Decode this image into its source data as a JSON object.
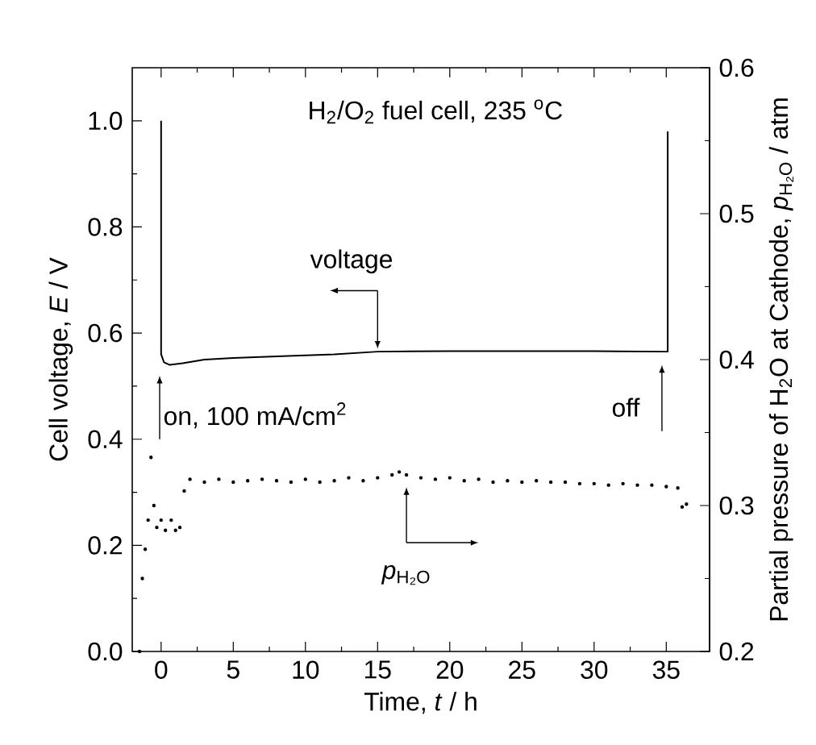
{
  "chart_data": {
    "type": "line",
    "title": "H$_{2}$/O$_{2}$ fuel cell, 235 $^{o}$C",
    "xlabel": "Time, *t* / h",
    "ylabel": "Cell voltage, *E* / V",
    "y2label": "Partial pressure of H$_{2}$O at Cathode, *p*$_{H₂O}$ / atm",
    "xlim": [
      -2,
      38
    ],
    "xticks": [
      0,
      5,
      10,
      15,
      20,
      25,
      30,
      35
    ],
    "ylim": [
      0,
      1.1
    ],
    "yticks": [
      {
        "value": 0,
        "label": "0.0"
      },
      0.2,
      0.4,
      0.6,
      0.8,
      {
        "value": 1,
        "label": "1.0"
      }
    ],
    "y2lim": [
      0.2,
      0.6
    ],
    "y2ticks": [
      0.2,
      0.3,
      0.4,
      0.5,
      0.6
    ],
    "series": [
      {
        "color": "#000000",
        "marker": "none",
        "x": [
          0,
          0,
          0.2,
          0.6,
          1.5,
          3,
          5,
          8,
          12,
          15,
          20,
          25,
          30,
          35,
          35.1,
          35.1
        ],
        "values": [
          1.0,
          0.56,
          0.545,
          0.54,
          0.543,
          0.55,
          0.553,
          0.556,
          0.56,
          0.565,
          0.566,
          0.566,
          0.566,
          0.565,
          0.565,
          0.98
        ]
      },
      {
        "type": "scatter",
        "axis": "y2",
        "color": "#000000",
        "marker": "circle",
        "x": [
          -1.5,
          -1.3,
          -1.1,
          -0.9,
          -0.7,
          -0.5,
          -0.3,
          0,
          0.3,
          0.7,
          1.0,
          1.3,
          1.6,
          2,
          3,
          4,
          5,
          6,
          7,
          8,
          9,
          10,
          11,
          12,
          13,
          14,
          15,
          16,
          16.5,
          17,
          18,
          19,
          20,
          21,
          22,
          23,
          24,
          25,
          26,
          27,
          28,
          29,
          30,
          31,
          32,
          33,
          34,
          35,
          35.8,
          36.1,
          36.4
        ],
        "values": [
          0.2,
          0.25,
          0.27,
          0.29,
          0.333,
          0.3,
          0.285,
          0.29,
          0.283,
          0.29,
          0.283,
          0.285,
          0.31,
          0.318,
          0.316,
          0.318,
          0.316,
          0.317,
          0.318,
          0.317,
          0.316,
          0.318,
          0.316,
          0.317,
          0.319,
          0.317,
          0.319,
          0.321,
          0.323,
          0.321,
          0.319,
          0.318,
          0.319,
          0.317,
          0.318,
          0.316,
          0.317,
          0.316,
          0.317,
          0.316,
          0.316,
          0.315,
          0.315,
          0.314,
          0.315,
          0.314,
          0.314,
          0.313,
          0.312,
          0.299,
          0.301
        ]
      }
    ],
    "annotations": [
      {
        "text": "voltage",
        "x": 15,
        "y": 0.565
      },
      {
        "text": "on,  100 mA/cm$^{2}$",
        "x": 0,
        "y": 0.53
      },
      {
        "text": "off",
        "x": 35,
        "y": 0.555
      },
      {
        "text": "*p*$_{H₂O}$",
        "x": 17,
        "y": 0.32
      }
    ]
  }
}
